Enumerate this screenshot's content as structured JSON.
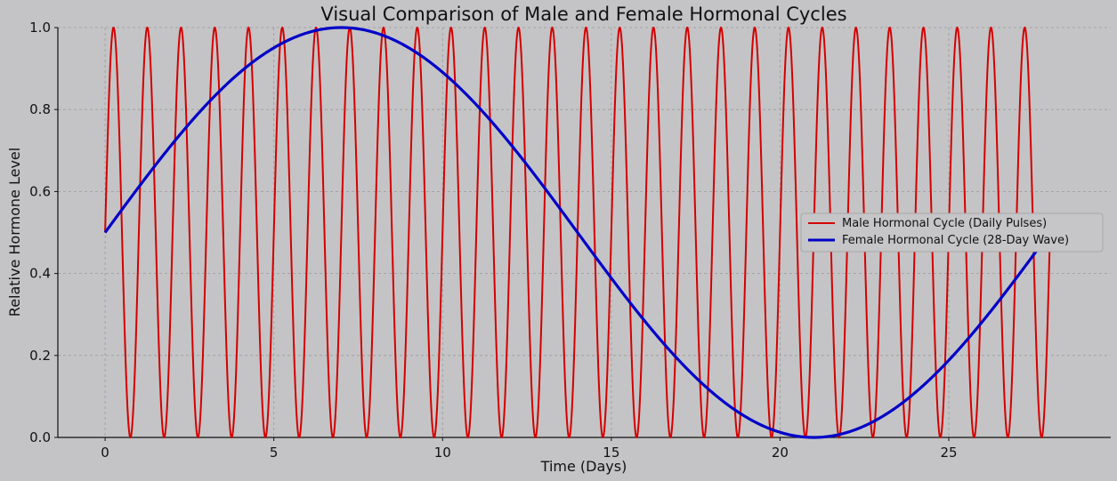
{
  "chart_data": {
    "type": "line",
    "title": "Visual Comparison of Male and Female Hormonal Cycles",
    "xlabel": "Time (Days)",
    "ylabel": "Relative Hormone Level",
    "xlim": [
      -1.4,
      29.8
    ],
    "ylim": [
      0,
      1
    ],
    "xticks": [
      0,
      5,
      10,
      15,
      20,
      25
    ],
    "yticks": [
      0.0,
      0.2,
      0.4,
      0.6,
      0.8,
      1.0
    ],
    "ytick_labels": [
      "0.0",
      "0.2",
      "0.4",
      "0.6",
      "0.8",
      "1.0"
    ],
    "grid": true,
    "legend_position": "right",
    "series": [
      {
        "name": "Male Hormonal Cycle (Daily Pulses)",
        "color": "#d40000",
        "function": "0.5 + 0.5*sin(2*pi*t)",
        "x_range": [
          0,
          28
        ],
        "peaks_at": "t = n + 0.25",
        "troughs_at": "t = n + 0.75"
      },
      {
        "name": "Female Hormonal Cycle (28-Day Wave)",
        "color": "#0000c8",
        "function": "0.5 + 0.5*sin(2*pi*t/28)",
        "x_range": [
          0,
          28
        ],
        "peak": [
          7,
          1.0
        ],
        "trough": [
          21,
          0.0
        ]
      }
    ]
  }
}
